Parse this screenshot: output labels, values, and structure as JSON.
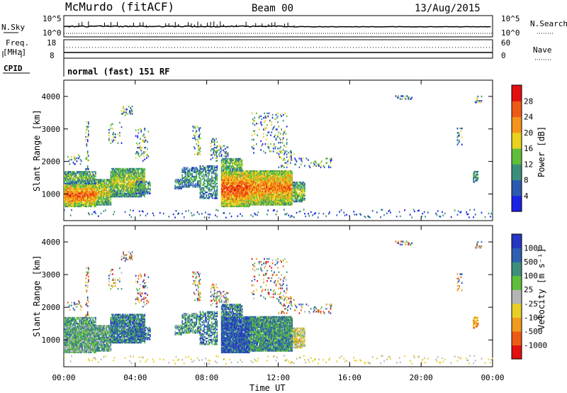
{
  "header": {
    "station": "McMurdo (fitACF)",
    "beam": "Beam 00",
    "date": "13/Aug/2015"
  },
  "chart_data": [
    {
      "type": "line",
      "panel": "noise",
      "left_label": "N.Sky",
      "right_label": "N.Search",
      "left_ticks": [
        "10^5",
        "10^0"
      ],
      "right_ticks": [
        "10^5",
        "10^0"
      ],
      "series": [
        {
          "name": "N.Sky",
          "style": "solid",
          "level": "near 10^5, spiky before 13:00"
        },
        {
          "name": "N.Search",
          "style": "dotted",
          "level": "near 10^0"
        }
      ]
    },
    {
      "type": "line",
      "panel": "frequency",
      "left_label": "Freq.\n[MHz]",
      "right_label": "Nave",
      "left_ticks": [
        "18",
        "8"
      ],
      "right_ticks": [
        "60",
        "0"
      ],
      "series": [
        {
          "name": "Freq.",
          "style": "solid",
          "value": 11
        },
        {
          "name": "Nave",
          "style": "dotted",
          "value": 36
        }
      ]
    },
    {
      "type": "table",
      "panel": "cpid",
      "label": "CPID",
      "segments": [
        {
          "text": "normal (fast) 151 RF",
          "start_hour": 0,
          "end_hour": 24
        }
      ]
    },
    {
      "type": "heatmap",
      "panel": "power",
      "ylabel": "Slant Range [km]",
      "xlabel": "",
      "ylim": [
        180,
        4500
      ],
      "xlim": [
        0,
        24
      ],
      "yticks": [
        1000,
        2000,
        3000,
        4000
      ],
      "colorbar": {
        "label": "Power [dB]",
        "ticks": [
          "4",
          "8",
          "12",
          "16",
          "20",
          "24",
          "28"
        ],
        "colors": [
          "#1a22e6",
          "#2b5ab0",
          "#3b8f7a",
          "#5fbf3a",
          "#e8d21e",
          "#f5941a",
          "#ee5a14",
          "#e31010"
        ]
      }
    },
    {
      "type": "heatmap",
      "panel": "velocity",
      "ylabel": "Slant Range [km]",
      "xlabel": "Time UT",
      "ylim": [
        180,
        4500
      ],
      "xlim": [
        0,
        24
      ],
      "yticks": [
        1000,
        2000,
        3000,
        4000
      ],
      "xticks": [
        "00:00",
        "04:00",
        "08:00",
        "12:00",
        "16:00",
        "20:00",
        "00:00"
      ],
      "colorbar": {
        "label": "Velocity [m s⁻¹]",
        "ticks": [
          "1000",
          "500",
          "100",
          "25",
          "-25",
          "-100",
          "-500",
          "-1000"
        ],
        "colors": [
          "#2637c4",
          "#2f5fb0",
          "#3d8f7b",
          "#5fbf3a",
          "#b5b5b5",
          "#e8cf28",
          "#f29a1e",
          "#ee5a14",
          "#e31010"
        ]
      }
    }
  ],
  "colors": {
    "accent_power_high": "#e31010",
    "accent_velocity_pos": "#2637c4"
  },
  "icons": {
    "colorbar_power": "colorbar",
    "colorbar_velocity": "colorbar"
  }
}
